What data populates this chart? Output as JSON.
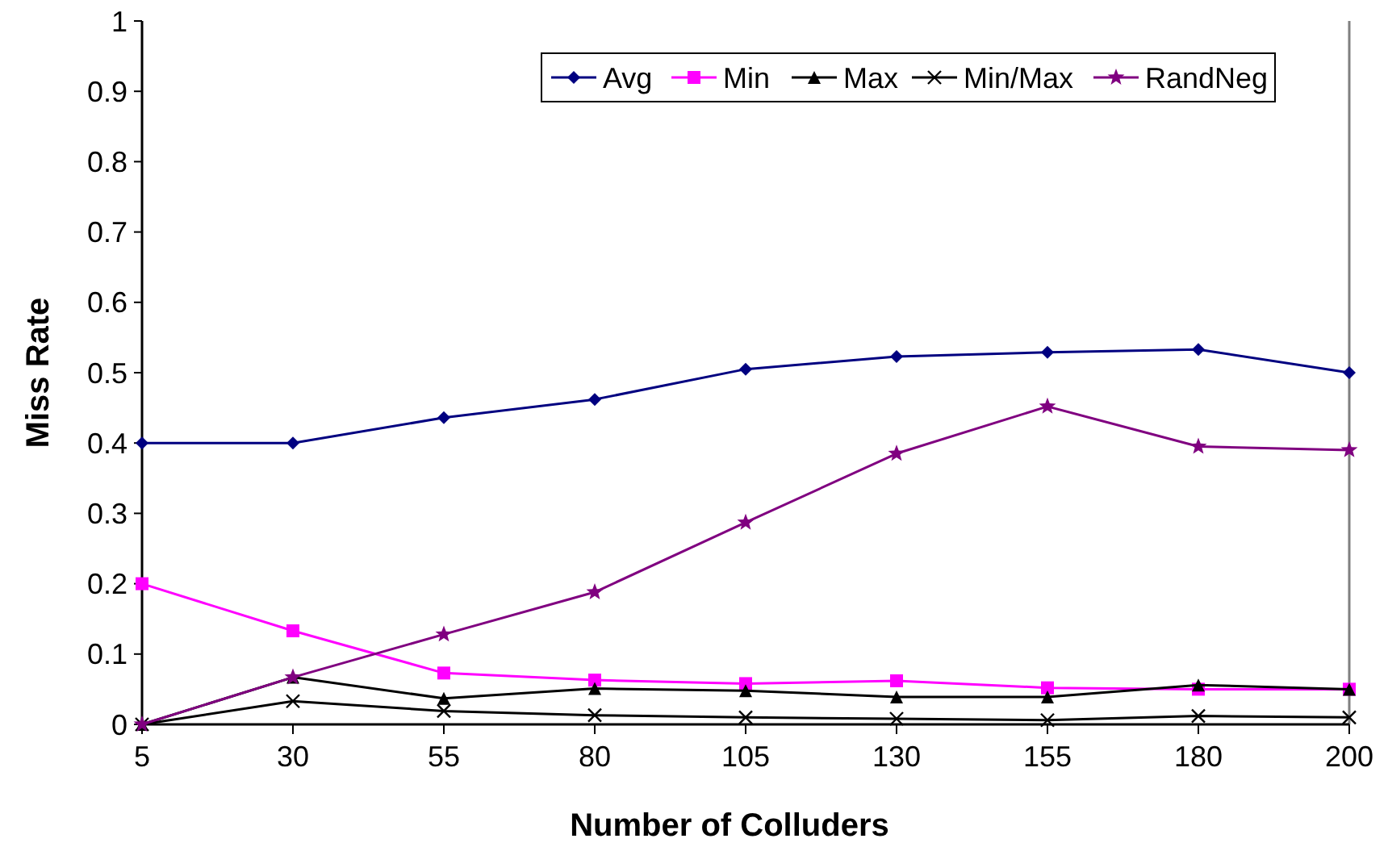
{
  "chart_data": {
    "type": "line",
    "xlabel": "Number of Colluders",
    "ylabel": "Miss Rate",
    "categories": [
      "5",
      "30",
      "55",
      "80",
      "105",
      "130",
      "155",
      "180",
      "200"
    ],
    "ylim": [
      0,
      1
    ],
    "yticks": [
      0,
      0.1,
      0.2,
      0.3,
      0.4,
      0.5,
      0.6,
      0.7,
      0.8,
      0.9,
      1
    ],
    "grid": false,
    "legend": "top right",
    "series": [
      {
        "name": "Avg",
        "color": "#000080",
        "marker": "diamond",
        "values": [
          0.4,
          0.4,
          0.436,
          0.462,
          0.505,
          0.523,
          0.529,
          0.533,
          0.5
        ]
      },
      {
        "name": "Min",
        "color": "#ff00ff",
        "marker": "square",
        "values": [
          0.2,
          0.133,
          0.073,
          0.063,
          0.058,
          0.062,
          0.052,
          0.05,
          0.05
        ]
      },
      {
        "name": "Max",
        "color": "#000000",
        "marker": "triangle",
        "values": [
          0,
          0.067,
          0.037,
          0.051,
          0.048,
          0.039,
          0.039,
          0.056,
          0.05
        ]
      },
      {
        "name": "Min/Max",
        "color": "#000000",
        "marker": "cross",
        "values": [
          0,
          0.033,
          0.019,
          0.013,
          0.01,
          0.008,
          0.006,
          0.012,
          0.01
        ]
      },
      {
        "name": "RandNeg",
        "color": "#800080",
        "marker": "star",
        "values": [
          0,
          0.067,
          0.128,
          0.188,
          0.287,
          0.385,
          0.452,
          0.395,
          0.39
        ]
      }
    ]
  }
}
